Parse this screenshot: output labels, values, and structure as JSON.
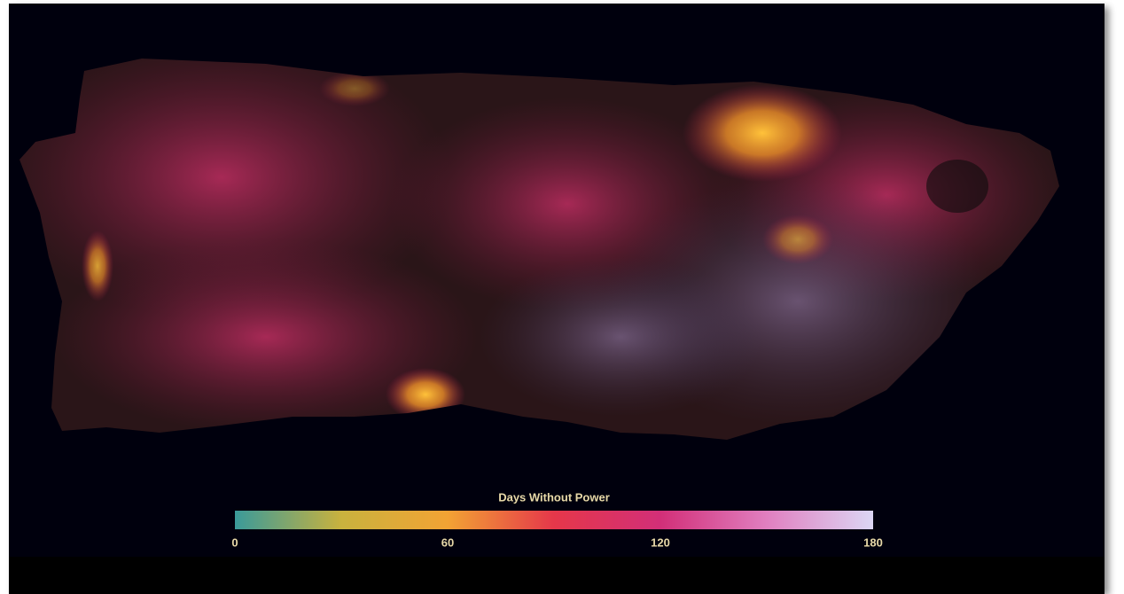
{
  "legend": {
    "title": "Days Without Power",
    "range": [
      0,
      180
    ],
    "ticks": [
      0,
      60,
      120,
      180
    ],
    "colors": [
      "#3a9a9a",
      "#c9b23e",
      "#f2a334",
      "#e5374a",
      "#d22f78",
      "#e07fc0",
      "#dcd6f4"
    ]
  }
}
